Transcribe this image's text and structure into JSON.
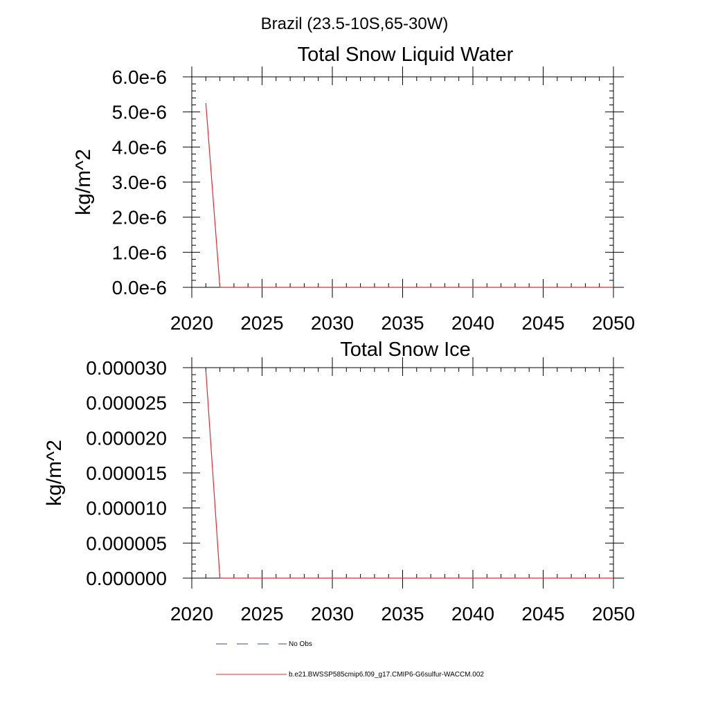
{
  "figure": {
    "title": "Brazil (23.5-10S,65-30W)"
  },
  "chart_data": [
    {
      "type": "line",
      "title": "Total Snow Liquid Water",
      "xlabel": "",
      "ylabel": "kg/m^2",
      "xlim": [
        2020,
        2050
      ],
      "ylim": [
        0,
        6e-06
      ],
      "x_ticks": [
        2020,
        2025,
        2030,
        2035,
        2040,
        2045,
        2050
      ],
      "x_tick_labels": [
        "2020",
        "2025",
        "2030",
        "2035",
        "2040",
        "2045",
        "2050"
      ],
      "y_ticks": [
        0,
        1e-06,
        2e-06,
        3e-06,
        4e-06,
        5e-06,
        6e-06
      ],
      "y_tick_labels": [
        "0.0e-6",
        "1.0e-6",
        "2.0e-6",
        "3.0e-6",
        "4.0e-6",
        "5.0e-6",
        "6.0e-6"
      ],
      "grid": false,
      "series": [
        {
          "name": "b.e21.BWSSP585cmip6.f09_g17.CMIP6-G6sulfur-WACCM.002",
          "color": "#e8262c",
          "x": [
            2021,
            2022,
            2023,
            2024,
            2025,
            2026,
            2027,
            2028,
            2029,
            2030,
            2031,
            2032,
            2033,
            2034,
            2035,
            2036,
            2037,
            2038,
            2039,
            2040,
            2041,
            2042,
            2043,
            2044,
            2045,
            2046,
            2047,
            2048,
            2049,
            2050
          ],
          "y": [
            5.25e-06,
            0,
            0,
            0,
            0,
            0,
            0,
            0,
            0,
            0,
            0,
            0,
            0,
            0,
            0,
            0,
            0,
            0,
            0,
            0,
            0,
            0,
            0,
            0,
            0,
            0,
            0,
            0,
            0,
            0
          ]
        }
      ]
    },
    {
      "type": "line",
      "title": "Total Snow Ice",
      "xlabel": "",
      "ylabel": "kg/m^2",
      "xlim": [
        2020,
        2050
      ],
      "ylim": [
        0,
        3e-05
      ],
      "x_ticks": [
        2020,
        2025,
        2030,
        2035,
        2040,
        2045,
        2050
      ],
      "x_tick_labels": [
        "2020",
        "2025",
        "2030",
        "2035",
        "2040",
        "2045",
        "2050"
      ],
      "y_ticks": [
        0,
        5e-06,
        1e-05,
        1.5e-05,
        2e-05,
        2.5e-05,
        3e-05
      ],
      "y_tick_labels": [
        "0.000000",
        "0.000005",
        "0.000010",
        "0.000015",
        "0.000020",
        "0.000025",
        "0.000030"
      ],
      "grid": false,
      "series": [
        {
          "name": "b.e21.BWSSP585cmip6.f09_g17.CMIP6-G6sulfur-WACCM.002",
          "color": "#e8262c",
          "x": [
            2021,
            2022,
            2023,
            2024,
            2025,
            2026,
            2027,
            2028,
            2029,
            2030,
            2031,
            2032,
            2033,
            2034,
            2035,
            2036,
            2037,
            2038,
            2039,
            2040,
            2041,
            2042,
            2043,
            2044,
            2045,
            2046,
            2047,
            2048,
            2049,
            2050
          ],
          "y": [
            2.96e-05,
            0,
            0,
            0,
            0,
            0,
            0,
            0,
            0,
            0,
            0,
            0,
            0,
            0,
            0,
            0,
            0,
            0,
            0,
            0,
            0,
            0,
            0,
            0,
            0,
            0,
            0,
            0,
            0,
            0
          ]
        }
      ]
    }
  ],
  "legend": {
    "placement": "bottom",
    "entries": [
      {
        "label": "No Obs",
        "color": "#3a4a7a",
        "style": "dashed"
      },
      {
        "label": "b.e21.BWSSP585cmip6.f09_g17.CMIP6-G6sulfur-WACCM.002",
        "color": "#e8262c",
        "style": "solid"
      }
    ]
  }
}
